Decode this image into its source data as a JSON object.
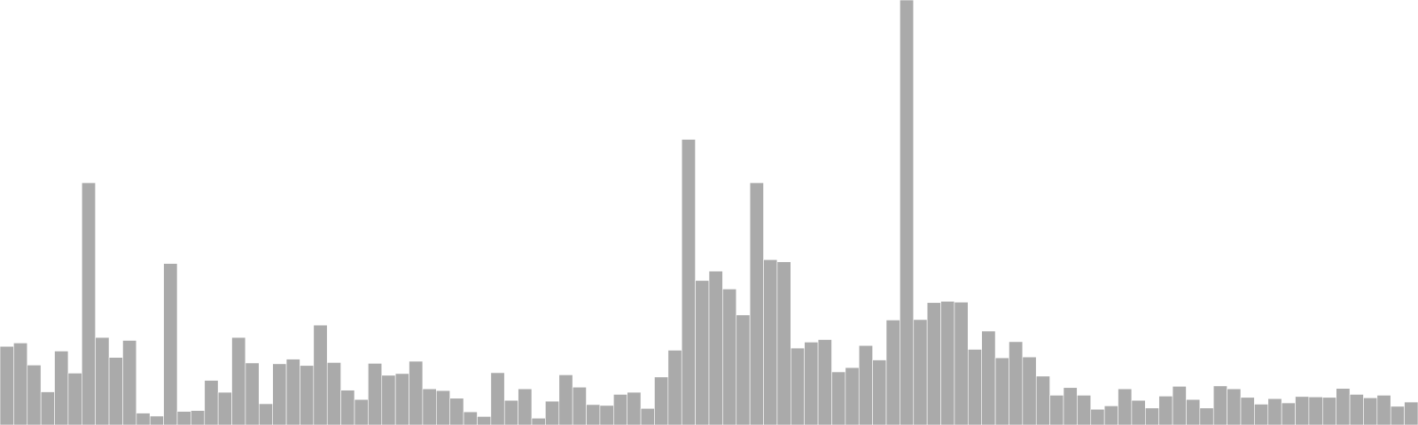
{
  "chart_data": {
    "type": "bar",
    "title": "",
    "xlabel": "",
    "ylabel": "",
    "axes_visible": false,
    "grid": false,
    "legend": "none",
    "ylim": [
      0,
      100
    ],
    "bar_color": "#aaaaaa",
    "bar_edge_color": "#ffffff",
    "background_color": "#ffffff",
    "values": [
      18.5,
      19.3,
      14.1,
      7.8,
      17.4,
      12.2,
      57.0,
      20.6,
      15.9,
      19.9,
      2.8,
      2.1,
      38.0,
      3.2,
      3.4,
      10.5,
      7.7,
      20.6,
      14.6,
      5.0,
      14.4,
      15.5,
      14.0,
      23.5,
      14.7,
      8.2,
      6.0,
      14.5,
      11.7,
      12.1,
      15.0,
      8.5,
      8.1,
      6.3,
      3.1,
      2.0,
      12.3,
      5.8,
      8.5,
      1.6,
      5.6,
      11.8,
      8.9,
      4.8,
      4.6,
      7.2,
      7.7,
      3.9,
      11.3,
      17.6,
      67.2,
      34.0,
      36.2,
      32.0,
      25.9,
      57.0,
      38.9,
      38.4,
      18.1,
      19.5,
      20.1,
      12.5,
      13.5,
      18.7,
      15.3,
      24.7,
      100.0,
      24.8,
      28.8,
      29.1,
      28.9,
      17.8,
      22.1,
      15.8,
      19.6,
      16.0,
      11.5,
      7.0,
      8.8,
      7.0,
      3.7,
      4.5,
      8.5,
      5.8,
      4.0,
      6.8,
      9.1,
      6.0,
      4.0,
      9.2,
      8.5,
      6.5,
      4.9,
      6.2,
      5.2,
      6.7,
      6.6,
      6.5,
      8.6,
      7.2,
      6.4,
      7.0,
      4.4,
      5.4
    ]
  }
}
